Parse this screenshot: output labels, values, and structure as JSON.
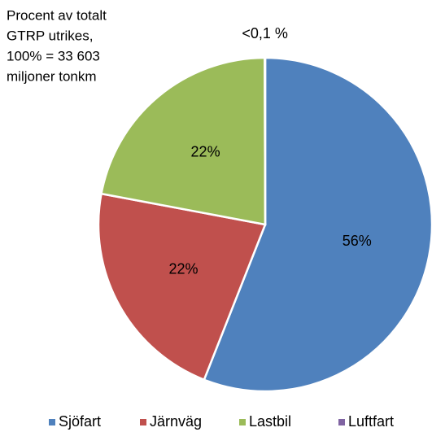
{
  "chart_data": {
    "type": "pie",
    "title": [
      "Procent av totalt",
      "GTRP utrikes,",
      "100% = 33 603",
      "miljoner tonkm"
    ],
    "categories": [
      "Sjöfart",
      "Järnväg",
      "Lastbil",
      "Luftfart"
    ],
    "values": [
      56,
      22,
      22,
      0.05
    ],
    "value_labels": [
      "56%",
      "22%",
      "22%",
      "<0,1 %"
    ],
    "colors": [
      "#4f81bd",
      "#c0504d",
      "#9bbb59",
      "#8064a2"
    ],
    "legend": "bottom"
  }
}
